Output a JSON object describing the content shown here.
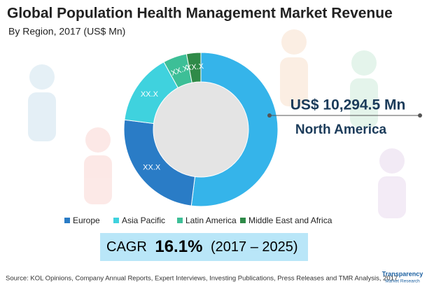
{
  "chart_data": {
    "type": "donut",
    "title": "Global Population Health Management Market Revenue",
    "subtitle": "By Region, 2017 (US$ Mn)",
    "categories": [
      "North America",
      "Europe",
      "Asia Pacific",
      "Latin America",
      "Middle East and Africa"
    ],
    "values": [
      10294.5,
      4950,
      2970,
      990,
      594
    ],
    "value_labels": [
      "US$ 10,294.5 Mn",
      "XX.X",
      "XX.X",
      "XX.X",
      "XX.X"
    ],
    "colors": [
      "#35b4ea",
      "#2a7cc6",
      "#3fd2de",
      "#3dbf97",
      "#2f8a48"
    ],
    "cagr": {
      "label": "CAGR",
      "value_label": "16.1%",
      "period": "(2017 – 2025)"
    },
    "source": "Source: KOL Opinions, Company Annual Reports, Expert Interviews, Investing Publications, Press Releases and TMR Analysis, 2017",
    "logo": {
      "name": "Transparency",
      "subname": "Market Research"
    }
  }
}
